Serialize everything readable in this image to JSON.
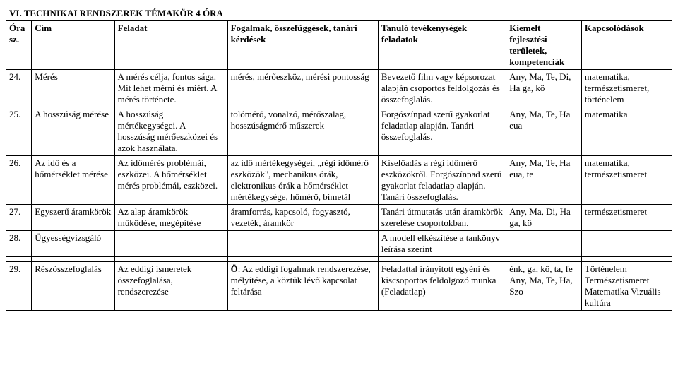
{
  "title": "VI. TECHNIKAI RENDSZEREK TÉMAKÖR 4 ÓRA",
  "head": {
    "c0": "Óra sz.",
    "c1": "Cím",
    "c2": "Feladat",
    "c3": "Fogalmak, összefüggések, tanári kérdések",
    "c4": "Tanuló tevékenységek feladatok",
    "c5": "Kiemelt fejlesztési területek, kompetenciák",
    "c6": "Kapcsolódások"
  },
  "rows": [
    {
      "c0": "24.",
      "c1": "Mérés",
      "c2": "A mérés célja, fontos sága. Mit lehet mérni és miért. A mérés története.",
      "c3": "mérés, mérőeszköz, mérési pontosság",
      "c4": "Bevezető film vagy képsorozat alapján csoportos feldolgozás és összefoglalás.",
      "c5": "Any, Ma, Te, Di, Ha\n\nga, kö",
      "c6": "matematika, természetismeret, történelem"
    },
    {
      "c0": "25.",
      "c1": "A hosszúság mérése",
      "c2": "A hosszúság mértékegységei. A hosszúság mérőeszközei és azok használata.",
      "c3": "tolómérő, vonalzó, mérőszalag, hosszúságmérő műszerek",
      "c4": "Forgószínpad szerű gyakorlat feladatlap alapján. Tanári összefoglalás.",
      "c5": "Any, Ma, Te, Ha\n\neua",
      "c6": "matematika"
    },
    {
      "c0": "26.",
      "c1": "Az idő és a hőmérséklet mérése",
      "c2": "Az időmérés problémái, eszközei. A hőmérséklet mérés problémái, eszközei.",
      "c3": "az idő mértékegységei, „régi időmérő eszközök\", mechanikus órák, elektronikus órák a hőmérséklet mértékegysége, hőmérő, bimetál",
      "c4": "Kiselőadás a régi időmérő eszközökről. Forgószínpad szerű gyakorlat feladatlap alapján. Tanári összefoglalás.",
      "c5": "Any, Ma, Te, Ha\n\neua, te",
      "c6": "matematika, természetismeret"
    },
    {
      "c0": "27.",
      "c1": "Egyszerű áramkörök",
      "c2": "Az alap áramkörök működése, megépítése",
      "c3": "áramforrás, kapcsoló, fogyasztó, vezeték, áramkör",
      "c4": "Tanári útmutatás után áramkörök szerelése csoportokban.",
      "c5": "Any, Ma, Di, Ha\nga, kö",
      "c6": "természetismeret"
    },
    {
      "c0": "28.",
      "c1": "Ügyességvizsgáló",
      "c2": "",
      "c3": "",
      "c4": "A modell elkészítése a tankönyv leírása szerint",
      "c5": "",
      "c6": ""
    },
    {
      "c0": "29.",
      "c1": "Részösszefoglalás",
      "c2": "Az eddigi ismeretek összefoglalása, rendszerezése",
      "c3": "Ö: Az eddigi fogalmak rendszerezése, mélyítése, a köztük lévő kapcsolat feltárása",
      "c4": "Feladattal irányított egyéni és kiscsoportos feldolgozó munka (Feladatlap)",
      "c5": "énk, ga, kö, ta, fe\nAny, Ma, Te, Ha, Szo",
      "c6": "Történelem Természetismeret Matematika Vizuális kultúra"
    }
  ]
}
